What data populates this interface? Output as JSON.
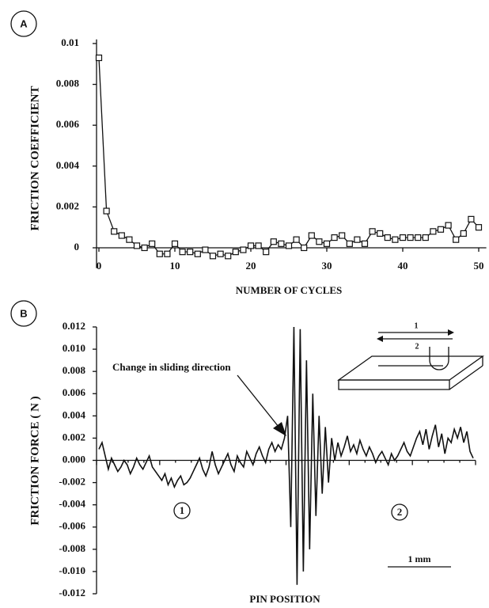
{
  "chart_data": [
    {
      "type": "line",
      "panel_label": "A",
      "xlabel": "NUMBER OF CYCLES",
      "ylabel": "FRICTION COEFFICIENT",
      "x": [
        0,
        1,
        2,
        3,
        4,
        5,
        6,
        7,
        8,
        9,
        10,
        11,
        12,
        13,
        14,
        15,
        16,
        17,
        18,
        19,
        20,
        21,
        22,
        23,
        24,
        25,
        26,
        27,
        28,
        29,
        30,
        31,
        32,
        33,
        34,
        35,
        36,
        37,
        38,
        39,
        40,
        41,
        42,
        43,
        44,
        45,
        46,
        47,
        48,
        49,
        50
      ],
      "values": [
        0.0093,
        0.0018,
        0.0008,
        0.0006,
        0.0004,
        0.0001,
        0.0,
        0.0002,
        -0.0003,
        -0.0003,
        0.0002,
        -0.0002,
        -0.0002,
        -0.0003,
        -0.0001,
        -0.0004,
        -0.0003,
        -0.0004,
        -0.0002,
        -0.0001,
        0.0001,
        0.0001,
        -0.0002,
        0.0003,
        0.0002,
        0.0001,
        0.0004,
        0.0,
        0.0006,
        0.0003,
        0.0002,
        0.0005,
        0.0006,
        0.0002,
        0.0004,
        0.0002,
        0.0008,
        0.0007,
        0.0005,
        0.0004,
        0.0005,
        0.0005,
        0.0005,
        0.0005,
        0.0008,
        0.0009,
        0.0011,
        0.0004,
        0.0007,
        0.0014,
        0.001
      ],
      "color": "#111111",
      "marker": "square",
      "xlim": [
        0,
        51
      ],
      "ylim": [
        -0.001,
        0.0102
      ],
      "xticks": [
        0,
        10,
        20,
        30,
        40,
        50
      ],
      "yticks": [
        0,
        0.002,
        0.004,
        0.006,
        0.008,
        0.01
      ]
    },
    {
      "type": "line",
      "panel_label": "B",
      "xlabel": "PIN POSITION",
      "ylabel": "FRICTION FORCE ( N )",
      "annotation": "Change in sliding direction",
      "region_labels": [
        "1",
        "2"
      ],
      "scale_bar": "1 mm",
      "inset_labels": [
        "1",
        "2"
      ],
      "values": [
        0.001,
        0.0016,
        0.0004,
        -0.0008,
        0.0002,
        -0.0004,
        -0.001,
        -0.0006,
        0.0,
        -0.0004,
        -0.0012,
        -0.0006,
        0.0002,
        -0.0004,
        -0.0008,
        -0.0002,
        0.0004,
        -0.0006,
        -0.001,
        -0.0014,
        -0.0018,
        -0.0012,
        -0.0022,
        -0.0016,
        -0.0024,
        -0.0018,
        -0.0014,
        -0.0022,
        -0.002,
        -0.0016,
        -0.001,
        -0.0004,
        0.0002,
        -0.0008,
        -0.0014,
        -0.0006,
        0.0008,
        -0.0004,
        -0.0012,
        -0.0006,
        0.0,
        0.0006,
        -0.0004,
        -0.001,
        0.0004,
        -0.0002,
        -0.0006,
        0.0008,
        0.0002,
        -0.0004,
        0.0006,
        0.0012,
        0.0004,
        -0.0002,
        0.001,
        0.0016,
        0.0008,
        0.0014,
        0.001,
        0.002,
        0.004,
        -0.006,
        0.012,
        -0.0112,
        0.0118,
        -0.01,
        0.009,
        -0.008,
        0.006,
        -0.005,
        0.004,
        -0.003,
        0.003,
        -0.002,
        0.002,
        0.0,
        0.0016,
        0.0004,
        0.0012,
        0.0022,
        0.0008,
        0.0014,
        0.0006,
        0.0018,
        0.001,
        0.0004,
        0.0012,
        0.0006,
        -0.0002,
        0.0004,
        0.0008,
        0.0002,
        -0.0004,
        0.0006,
        0.0,
        0.0004,
        0.001,
        0.0016,
        0.0008,
        0.0004,
        0.0012,
        0.002,
        0.0026,
        0.0014,
        0.0028,
        0.001,
        0.0022,
        0.0032,
        0.0012,
        0.0024,
        0.0006,
        0.002,
        0.0016,
        0.0028,
        0.002,
        0.003,
        0.0016,
        0.0026,
        0.0008,
        0.0002
      ],
      "color": "#111111",
      "ylim": [
        -0.012,
        0.012
      ],
      "yticks": [
        -0.012,
        {
          "value": -0.01,
          "label": "-0.010"
        },
        -0.008,
        -0.006,
        -0.004,
        -0.002,
        {
          "value": 0,
          "label": "0.000"
        },
        0.002,
        0.004,
        0.006,
        0.008,
        {
          "value": 0.01,
          "label": "0.010"
        },
        0.012
      ]
    }
  ]
}
